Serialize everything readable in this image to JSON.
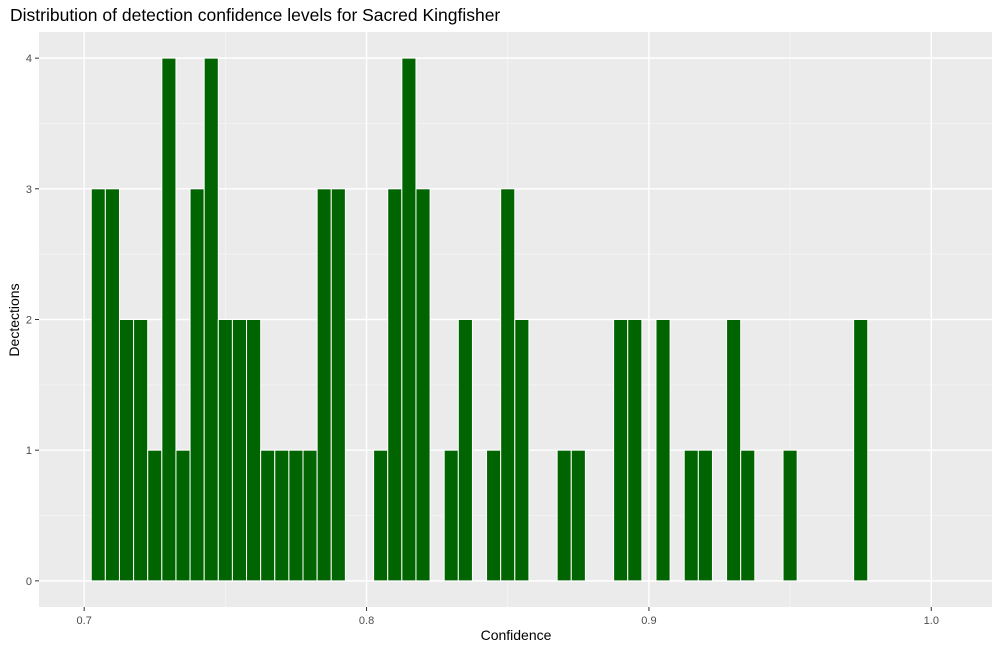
{
  "chart_data": {
    "type": "bar",
    "title": "Distribution of detection confidence levels for Sacred Kingfisher",
    "xlabel": "Confidence",
    "ylabel": "Dectections",
    "xlim": [
      0.684,
      1.0215
    ],
    "ylim": [
      -0.2,
      4.2
    ],
    "x_ticks": [
      0.7,
      0.8,
      0.9,
      1.0
    ],
    "x_tick_labels": [
      "0.7",
      "0.8",
      "0.9",
      "1.0"
    ],
    "y_ticks": [
      0,
      1,
      2,
      3,
      4
    ],
    "y_tick_labels": [
      "0",
      "1",
      "2",
      "3",
      "4"
    ],
    "bin_width": 0.005,
    "bins": [
      {
        "x": 0.705,
        "count": 3
      },
      {
        "x": 0.71,
        "count": 3
      },
      {
        "x": 0.715,
        "count": 2
      },
      {
        "x": 0.72,
        "count": 2
      },
      {
        "x": 0.725,
        "count": 1
      },
      {
        "x": 0.73,
        "count": 4
      },
      {
        "x": 0.735,
        "count": 1
      },
      {
        "x": 0.74,
        "count": 3
      },
      {
        "x": 0.745,
        "count": 4
      },
      {
        "x": 0.75,
        "count": 2
      },
      {
        "x": 0.755,
        "count": 2
      },
      {
        "x": 0.76,
        "count": 2
      },
      {
        "x": 0.765,
        "count": 1
      },
      {
        "x": 0.77,
        "count": 1
      },
      {
        "x": 0.775,
        "count": 1
      },
      {
        "x": 0.78,
        "count": 1
      },
      {
        "x": 0.785,
        "count": 3
      },
      {
        "x": 0.79,
        "count": 3
      },
      {
        "x": 0.805,
        "count": 1
      },
      {
        "x": 0.81,
        "count": 3
      },
      {
        "x": 0.815,
        "count": 4
      },
      {
        "x": 0.82,
        "count": 3
      },
      {
        "x": 0.83,
        "count": 1
      },
      {
        "x": 0.835,
        "count": 2
      },
      {
        "x": 0.845,
        "count": 1
      },
      {
        "x": 0.85,
        "count": 3
      },
      {
        "x": 0.855,
        "count": 2
      },
      {
        "x": 0.87,
        "count": 1
      },
      {
        "x": 0.875,
        "count": 1
      },
      {
        "x": 0.89,
        "count": 2
      },
      {
        "x": 0.895,
        "count": 2
      },
      {
        "x": 0.905,
        "count": 2
      },
      {
        "x": 0.915,
        "count": 1
      },
      {
        "x": 0.92,
        "count": 1
      },
      {
        "x": 0.93,
        "count": 2
      },
      {
        "x": 0.935,
        "count": 1
      },
      {
        "x": 0.95,
        "count": 1
      },
      {
        "x": 0.975,
        "count": 2
      }
    ],
    "grid": true,
    "colors": {
      "bar_fill": "#006400",
      "bar_outline": "#ffffff",
      "panel_background": "#ebebeb",
      "grid_major": "#ffffff",
      "grid_minor": "#f5f5f5",
      "tick_color": "#333333"
    }
  }
}
